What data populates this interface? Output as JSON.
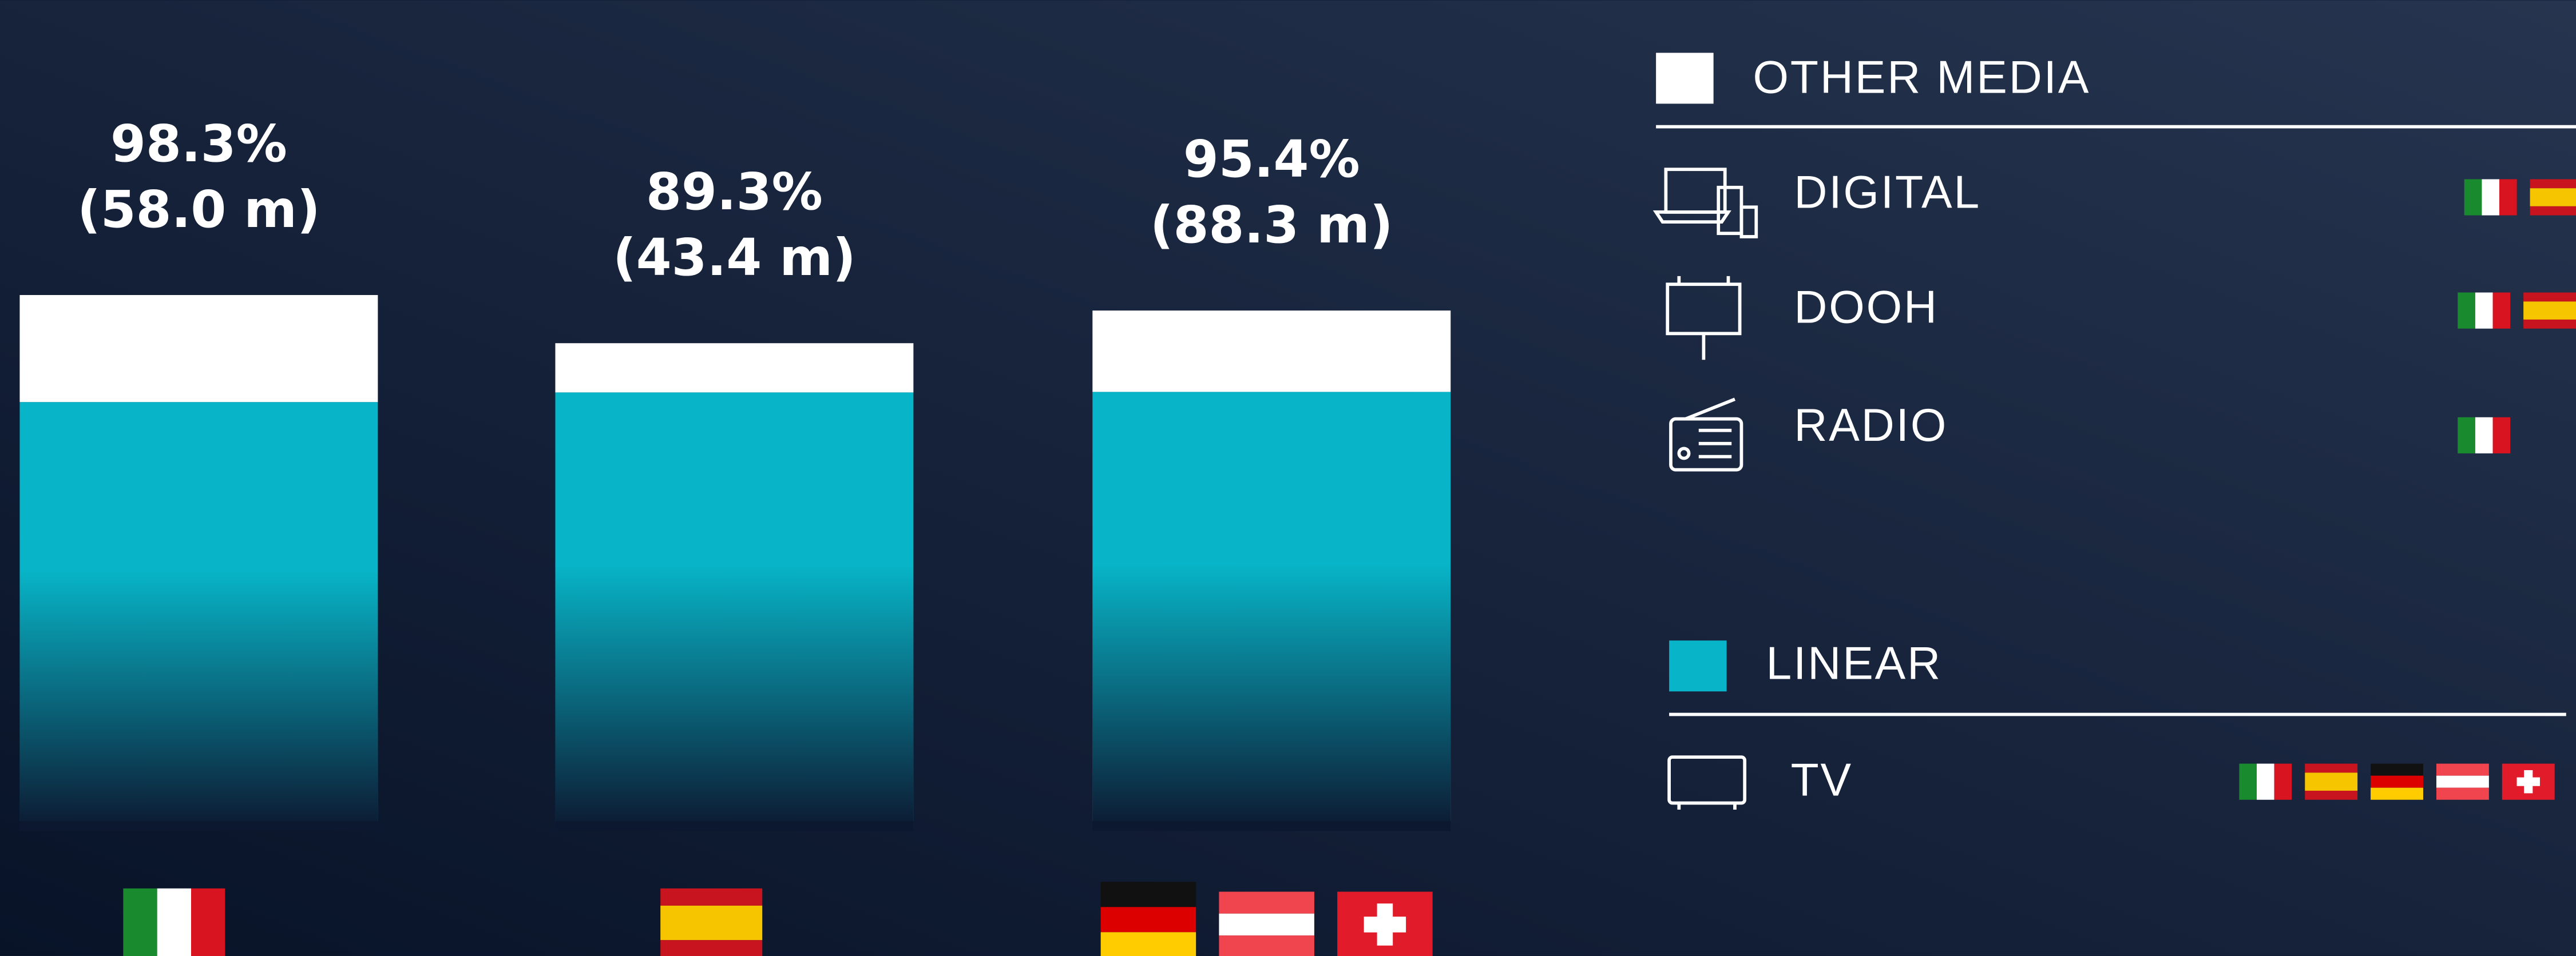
{
  "chart_data": {
    "type": "stacked_bar",
    "categories": [
      null,
      null,
      null
    ],
    "series": [
      {
        "name": "LINEAR",
        "color": "#08b5c8",
        "values": [
          78.3,
          80.1,
          80.2
        ],
        "channels": [
          "TV"
        ]
      },
      {
        "name": "OTHER MEDIA",
        "color": "#ffffff",
        "values": [
          20.0,
          9.2,
          15.2
        ],
        "channels": [
          "DIGITAL",
          "DOOH",
          "RADIO"
        ]
      }
    ],
    "total_labels": [
      "98.3%",
      "89.3%",
      "95.4%"
    ],
    "audience_labels": [
      "(58.0 m)",
      "(43.4 m)",
      "(88.3 m)"
    ]
  }
}
